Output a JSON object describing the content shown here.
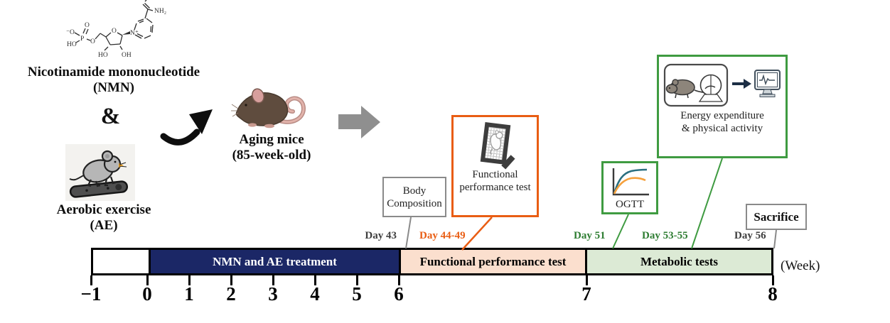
{
  "top_section": {
    "nmn": {
      "name_line1": "Nicotinamide mononucleotide",
      "name_line2": "(NMN)"
    },
    "ampersand": "&",
    "ae": {
      "name_line1": "Aerobic exercise",
      "name_line2": "(AE)"
    },
    "aging_mice": {
      "name_line1": "Aging mice",
      "name_line2": "(85-week-old)"
    },
    "chem_labels": {
      "o_minus": "⁻O",
      "o_double": "O",
      "p": "P",
      "ho_left": "HO",
      "o_ester": "O",
      "ring_o": "O",
      "ho_bottom": "HO",
      "oh_bottom": "OH",
      "n_plus": "N⁺",
      "nh2": "NH₂"
    }
  },
  "callouts": {
    "body_composition": {
      "line1": "Body",
      "line2": "Composition"
    },
    "functional_test": {
      "line1": "Functional",
      "line2": "performance test"
    },
    "ogtt": {
      "label": "OGTT"
    },
    "energy": {
      "line1": "Energy expenditure",
      "line2": "& physical activity"
    },
    "sacrifice": {
      "label": "Sacrifice"
    }
  },
  "day_labels": [
    {
      "label": "Day 43",
      "color": "#3f3f3f"
    },
    {
      "label": "Day 44-49",
      "color": "#e95d13"
    },
    {
      "label": "Day 51",
      "color": "#2e7d32"
    },
    {
      "label": "Day 53-55",
      "color": "#2e7d32"
    },
    {
      "label": "Day 56",
      "color": "#3f3f3f"
    }
  ],
  "timeline": {
    "segments": [
      {
        "label": "",
        "fill": "#ffffff",
        "text_color": "#000000"
      },
      {
        "label": "NMN and AE treatment",
        "fill": "#1b2766",
        "text_color": "#ffffff"
      },
      {
        "label": "Functional performance test",
        "fill": "#fbdfce",
        "text_color": "#000000"
      },
      {
        "label": "Metabolic tests",
        "fill": "#dcead5",
        "text_color": "#000000"
      }
    ],
    "week_ticks": [
      "−1",
      "0",
      "1",
      "2",
      "3",
      "4",
      "5",
      "6",
      "7",
      "8"
    ],
    "axis_unit": "(Week)"
  },
  "colors": {
    "accent_orange": "#e95d13",
    "accent_green": "#3f9b41",
    "green_text": "#2e7d32",
    "gray_border": "#8a8a8a",
    "navy": "#1b2766",
    "peach": "#fbdfce",
    "light_green": "#dcead5",
    "block_arrow_gray": "#8f8f8f",
    "arrow_black": "#0e0e0e"
  }
}
